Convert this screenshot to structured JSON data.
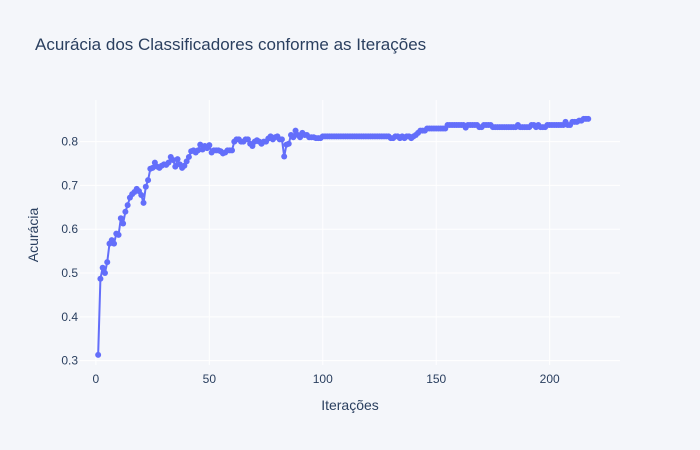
{
  "chart_data": {
    "type": "line",
    "title": "Acurácia dos Classificadores conforme as Iterações",
    "xlabel": "Iterações",
    "ylabel": "Acurácia",
    "xlim": [
      -7,
      231
    ],
    "ylim": [
      0.29,
      0.895
    ],
    "xticks": [
      0,
      50,
      100,
      150,
      200
    ],
    "yticks": [
      0.3,
      0.4,
      0.5,
      0.6,
      0.7,
      0.8
    ],
    "ytick_labels": [
      "0.3",
      "0.4",
      "0.5",
      "0.6",
      "0.7",
      "0.8"
    ],
    "grid": true,
    "legend": "none",
    "mode": "lines+markers",
    "series": [
      {
        "color": "#636efa",
        "points": [
          [
            1,
            0.313
          ],
          [
            2,
            0.487
          ],
          [
            3,
            0.512
          ],
          [
            4,
            0.5
          ],
          [
            5,
            0.525
          ],
          [
            6,
            0.567
          ],
          [
            7,
            0.575
          ],
          [
            8,
            0.567
          ],
          [
            9,
            0.59
          ],
          [
            10,
            0.587
          ],
          [
            11,
            0.625
          ],
          [
            12,
            0.613
          ],
          [
            13,
            0.64
          ],
          [
            14,
            0.655
          ],
          [
            15,
            0.672
          ],
          [
            16,
            0.68
          ],
          [
            17,
            0.685
          ],
          [
            18,
            0.692
          ],
          [
            19,
            0.687
          ],
          [
            20,
            0.678
          ],
          [
            21,
            0.66
          ],
          [
            22,
            0.697
          ],
          [
            23,
            0.712
          ],
          [
            24,
            0.738
          ],
          [
            25,
            0.74
          ],
          [
            26,
            0.752
          ],
          [
            27,
            0.743
          ],
          [
            28,
            0.74
          ],
          [
            29,
            0.745
          ],
          [
            30,
            0.748
          ],
          [
            31,
            0.747
          ],
          [
            32,
            0.752
          ],
          [
            33,
            0.765
          ],
          [
            34,
            0.758
          ],
          [
            35,
            0.743
          ],
          [
            36,
            0.76
          ],
          [
            37,
            0.748
          ],
          [
            38,
            0.74
          ],
          [
            39,
            0.745
          ],
          [
            40,
            0.755
          ],
          [
            41,
            0.765
          ],
          [
            42,
            0.778
          ],
          [
            43,
            0.78
          ],
          [
            44,
            0.775
          ],
          [
            45,
            0.78
          ],
          [
            46,
            0.793
          ],
          [
            47,
            0.782
          ],
          [
            48,
            0.79
          ],
          [
            49,
            0.785
          ],
          [
            50,
            0.792
          ],
          [
            51,
            0.775
          ],
          [
            52,
            0.78
          ],
          [
            53,
            0.78
          ],
          [
            54,
            0.78
          ],
          [
            55,
            0.778
          ],
          [
            56,
            0.773
          ],
          [
            57,
            0.775
          ],
          [
            58,
            0.78
          ],
          [
            59,
            0.78
          ],
          [
            60,
            0.78
          ],
          [
            61,
            0.8
          ],
          [
            62,
            0.805
          ],
          [
            63,
            0.805
          ],
          [
            64,
            0.8
          ],
          [
            65,
            0.8
          ],
          [
            66,
            0.805
          ],
          [
            67,
            0.805
          ],
          [
            68,
            0.795
          ],
          [
            69,
            0.79
          ],
          [
            70,
            0.8
          ],
          [
            71,
            0.803
          ],
          [
            72,
            0.8
          ],
          [
            73,
            0.795
          ],
          [
            74,
            0.8
          ],
          [
            75,
            0.8
          ],
          [
            76,
            0.807
          ],
          [
            77,
            0.812
          ],
          [
            78,
            0.805
          ],
          [
            79,
            0.81
          ],
          [
            80,
            0.812
          ],
          [
            81,
            0.805
          ],
          [
            82,
            0.805
          ],
          [
            83,
            0.766
          ],
          [
            84,
            0.793
          ],
          [
            85,
            0.795
          ],
          [
            86,
            0.815
          ],
          [
            87,
            0.81
          ],
          [
            88,
            0.825
          ],
          [
            89,
            0.815
          ],
          [
            90,
            0.81
          ],
          [
            91,
            0.82
          ],
          [
            92,
            0.815
          ],
          [
            93,
            0.815
          ],
          [
            94,
            0.81
          ],
          [
            95,
            0.81
          ],
          [
            96,
            0.81
          ],
          [
            97,
            0.808
          ],
          [
            98,
            0.808
          ],
          [
            99,
            0.808
          ],
          [
            100,
            0.812
          ],
          [
            101,
            0.812
          ],
          [
            102,
            0.812
          ],
          [
            103,
            0.812
          ],
          [
            104,
            0.812
          ],
          [
            105,
            0.812
          ],
          [
            106,
            0.812
          ],
          [
            107,
            0.812
          ],
          [
            108,
            0.812
          ],
          [
            109,
            0.812
          ],
          [
            110,
            0.812
          ],
          [
            111,
            0.812
          ],
          [
            112,
            0.812
          ],
          [
            113,
            0.812
          ],
          [
            114,
            0.812
          ],
          [
            115,
            0.812
          ],
          [
            116,
            0.812
          ],
          [
            117,
            0.812
          ],
          [
            118,
            0.812
          ],
          [
            119,
            0.812
          ],
          [
            120,
            0.812
          ],
          [
            121,
            0.812
          ],
          [
            122,
            0.812
          ],
          [
            123,
            0.812
          ],
          [
            124,
            0.812
          ],
          [
            125,
            0.812
          ],
          [
            126,
            0.812
          ],
          [
            127,
            0.812
          ],
          [
            128,
            0.812
          ],
          [
            129,
            0.812
          ],
          [
            130,
            0.808
          ],
          [
            131,
            0.808
          ],
          [
            132,
            0.812
          ],
          [
            133,
            0.812
          ],
          [
            134,
            0.808
          ],
          [
            135,
            0.812
          ],
          [
            136,
            0.808
          ],
          [
            137,
            0.812
          ],
          [
            138,
            0.812
          ],
          [
            139,
            0.808
          ],
          [
            140,
            0.812
          ],
          [
            141,
            0.815
          ],
          [
            142,
            0.82
          ],
          [
            143,
            0.825
          ],
          [
            144,
            0.825
          ],
          [
            145,
            0.825
          ],
          [
            146,
            0.83
          ],
          [
            147,
            0.83
          ],
          [
            148,
            0.83
          ],
          [
            149,
            0.83
          ],
          [
            150,
            0.83
          ],
          [
            151,
            0.83
          ],
          [
            152,
            0.83
          ],
          [
            153,
            0.83
          ],
          [
            154,
            0.83
          ],
          [
            155,
            0.838
          ],
          [
            156,
            0.838
          ],
          [
            157,
            0.838
          ],
          [
            158,
            0.838
          ],
          [
            159,
            0.838
          ],
          [
            160,
            0.838
          ],
          [
            161,
            0.838
          ],
          [
            162,
            0.838
          ],
          [
            163,
            0.832
          ],
          [
            164,
            0.838
          ],
          [
            165,
            0.838
          ],
          [
            166,
            0.838
          ],
          [
            167,
            0.838
          ],
          [
            168,
            0.838
          ],
          [
            169,
            0.833
          ],
          [
            170,
            0.833
          ],
          [
            171,
            0.838
          ],
          [
            172,
            0.838
          ],
          [
            173,
            0.838
          ],
          [
            174,
            0.838
          ],
          [
            175,
            0.833
          ],
          [
            176,
            0.833
          ],
          [
            177,
            0.833
          ],
          [
            178,
            0.833
          ],
          [
            179,
            0.833
          ],
          [
            180,
            0.833
          ],
          [
            181,
            0.833
          ],
          [
            182,
            0.833
          ],
          [
            183,
            0.833
          ],
          [
            184,
            0.833
          ],
          [
            185,
            0.833
          ],
          [
            186,
            0.838
          ],
          [
            187,
            0.833
          ],
          [
            188,
            0.833
          ],
          [
            189,
            0.833
          ],
          [
            190,
            0.833
          ],
          [
            191,
            0.833
          ],
          [
            192,
            0.838
          ],
          [
            193,
            0.838
          ],
          [
            194,
            0.833
          ],
          [
            195,
            0.838
          ],
          [
            196,
            0.833
          ],
          [
            197,
            0.833
          ],
          [
            198,
            0.833
          ],
          [
            199,
            0.838
          ],
          [
            200,
            0.838
          ],
          [
            201,
            0.838
          ],
          [
            202,
            0.838
          ],
          [
            203,
            0.838
          ],
          [
            204,
            0.838
          ],
          [
            205,
            0.838
          ],
          [
            206,
            0.838
          ],
          [
            207,
            0.845
          ],
          [
            208,
            0.838
          ],
          [
            209,
            0.838
          ],
          [
            210,
            0.845
          ],
          [
            211,
            0.845
          ],
          [
            212,
            0.845
          ],
          [
            213,
            0.848
          ],
          [
            214,
            0.848
          ],
          [
            215,
            0.852
          ],
          [
            216,
            0.852
          ],
          [
            217,
            0.852
          ]
        ]
      }
    ]
  }
}
